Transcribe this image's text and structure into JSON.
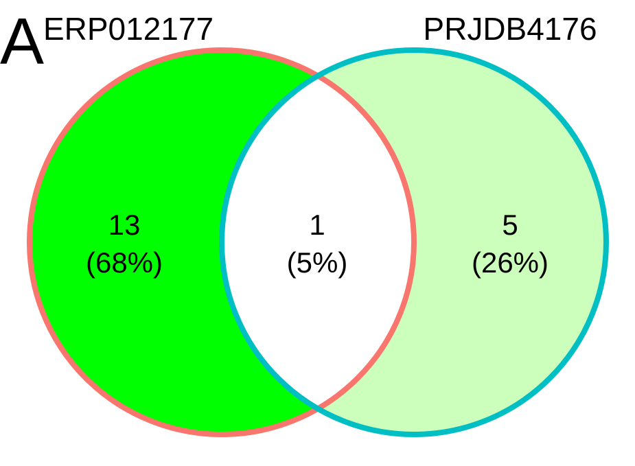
{
  "panel_label": "A",
  "sets": [
    {
      "name": "ERP012177",
      "color": "#F8766D",
      "fill": "#00FF00"
    },
    {
      "name": "PRJDB4176",
      "color": "#00BFC4",
      "fill": "#CCFFBB"
    }
  ],
  "regions": [
    {
      "id": "erp-only",
      "count": "13",
      "percent": "(68%)"
    },
    {
      "id": "overlap",
      "count": "1",
      "percent": "(5%)",
      "fill": "#FFFFFF"
    },
    {
      "id": "prj-only",
      "count": "5",
      "percent": "(26%)"
    }
  ]
}
